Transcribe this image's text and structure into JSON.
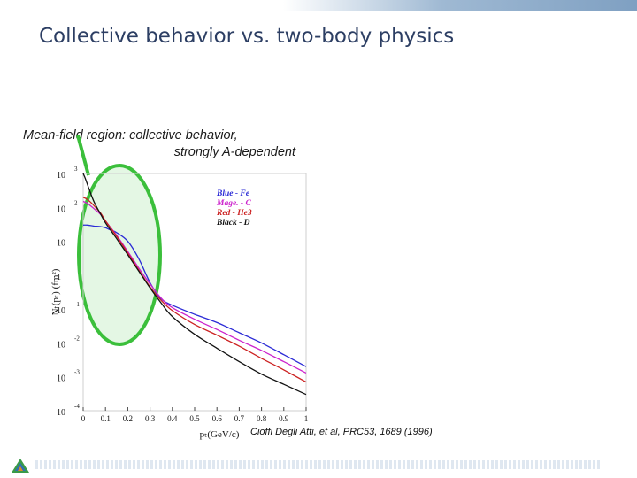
{
  "slide": {
    "title": "Collective behavior vs. two-body physics",
    "annotation_line1": "Mean-field region: collective behavior,",
    "annotation_line2": "strongly A-dependent",
    "citation": "Cioffi Degli Atti, et al, PRC53, 1689 (1996)"
  },
  "chart_data": {
    "type": "line",
    "xlabel": "pₜ(GeV/c)",
    "ylabel": "Nₜ(pₜ) (fm²)",
    "xlim": [
      0,
      1
    ],
    "ylim": [
      0.0001,
      1000
    ],
    "yscale": "log",
    "x_ticks": [
      "0",
      "0.1",
      "0.2",
      "0.3",
      "0.4",
      "0.5",
      "0.6",
      "0.7",
      "0.8",
      "0.9",
      "1"
    ],
    "y_ticks": [
      {
        "mant": "10",
        "exp": "3"
      },
      {
        "mant": "10",
        "exp": "2"
      },
      {
        "mant": "10",
        "exp": ""
      },
      {
        "mant": "1",
        "exp": ""
      },
      {
        "mant": "10",
        "exp": "-1"
      },
      {
        "mant": "10",
        "exp": "-2"
      },
      {
        "mant": "10",
        "exp": "-3"
      },
      {
        "mant": "10",
        "exp": "-4"
      }
    ],
    "legend_position": "top-right",
    "highlight_region": "ellipse around p < 0.33 GeV/c",
    "series": [
      {
        "name": "Blue - Fe",
        "color": "#2b2bd6",
        "x": [
          0,
          0.02,
          0.05,
          0.08,
          0.1,
          0.12,
          0.15,
          0.2,
          0.25,
          0.3,
          0.35,
          0.4,
          0.5,
          0.6,
          0.7,
          0.8,
          0.9,
          1.0
        ],
        "y": [
          30,
          30,
          28,
          27,
          25,
          22,
          18,
          10,
          3,
          0.6,
          0.2,
          0.13,
          0.07,
          0.04,
          0.02,
          0.01,
          0.0045,
          0.002
        ]
      },
      {
        "name": "Mage. - C",
        "color": "#cc22cc",
        "x": [
          0,
          0.02,
          0.05,
          0.08,
          0.1,
          0.15,
          0.2,
          0.25,
          0.3,
          0.35,
          0.4,
          0.5,
          0.6,
          0.7,
          0.8,
          0.9,
          1.0
        ],
        "y": [
          150,
          130,
          90,
          60,
          40,
          15,
          5,
          1.6,
          0.55,
          0.21,
          0.11,
          0.05,
          0.025,
          0.012,
          0.006,
          0.0028,
          0.0013
        ]
      },
      {
        "name": "Red - He3",
        "color": "#cc2222",
        "x": [
          0,
          0.02,
          0.05,
          0.08,
          0.1,
          0.15,
          0.2,
          0.25,
          0.3,
          0.35,
          0.4,
          0.5,
          0.6,
          0.7,
          0.8,
          0.9,
          1.0
        ],
        "y": [
          200,
          170,
          110,
          65,
          40,
          14,
          4.5,
          1.4,
          0.45,
          0.18,
          0.09,
          0.035,
          0.017,
          0.008,
          0.0035,
          0.0016,
          0.0007
        ]
      },
      {
        "name": "Black - D",
        "color": "#111111",
        "x": [
          0,
          0.01,
          0.03,
          0.05,
          0.08,
          0.1,
          0.15,
          0.2,
          0.25,
          0.3,
          0.35,
          0.4,
          0.5,
          0.6,
          0.7,
          0.8,
          0.9,
          1.0
        ],
        "y": [
          1000,
          700,
          300,
          140,
          60,
          35,
          12,
          4,
          1.3,
          0.42,
          0.15,
          0.06,
          0.018,
          0.007,
          0.0028,
          0.0012,
          0.0006,
          0.0003
        ]
      }
    ]
  }
}
